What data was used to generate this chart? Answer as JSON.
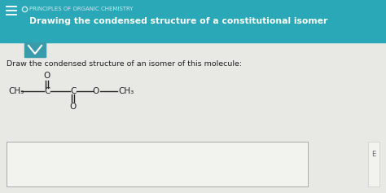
{
  "header_bg": "#2aa8b8",
  "header_text1": "O  PRINCIPLES OF ORGANIC CHEMISTRY",
  "header_text2": "Drawing the condensed structure of a constitutional isomer",
  "body_bg": "#e8e8e4",
  "body_text": "Draw the condensed structure of an isomer of this molecule:",
  "header_text1_color": "#cce8ec",
  "header_text2_color": "#ffffff",
  "body_text_color": "#222222",
  "molecule_color": "#222222",
  "dropdown_bg": "#3a9baa",
  "answer_box_bg": "#f2f2ee",
  "answer_box_border": "#aaaaaa",
  "hamburger_color": "#ffffff",
  "side_panel_bg": "#f2f2ee",
  "side_panel_border": "#cccccc"
}
